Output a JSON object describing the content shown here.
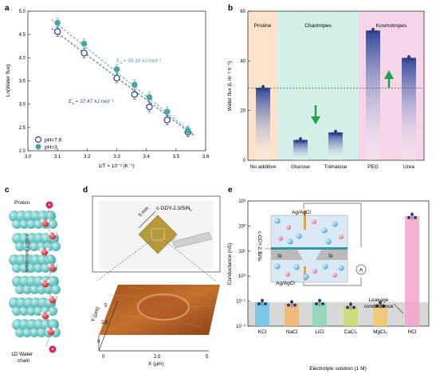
{
  "panel_labels": {
    "a": "a",
    "b": "b",
    "c": "c",
    "d": "d",
    "e": "e"
  },
  "chart_data": [
    {
      "type": "scatter",
      "panel": "a",
      "xlabel": "1/T × 10⁻³ (K⁻¹)",
      "ylabel": "Ln(Water flux)",
      "xlim": [
        3.0,
        3.6
      ],
      "ylim": [
        2.0,
        5.0
      ],
      "xticks": [
        "3.0",
        "3.1",
        "3.2",
        "3.3",
        "3.4",
        "3.5",
        "3.6"
      ],
      "yticks": [
        "2.0",
        "2.5",
        "3.0",
        "3.5",
        "4.0",
        "4.5",
        "5.0"
      ],
      "series": [
        {
          "name": "pH=7.8",
          "marker": "open",
          "color": "#2e4a8c",
          "x": [
            3.1,
            3.19,
            3.3,
            3.36,
            3.41,
            3.47,
            3.54
          ],
          "y": [
            4.56,
            4.1,
            3.56,
            3.21,
            2.94,
            2.66,
            2.4
          ],
          "fit": [
            [
              3.08,
              4.63
            ],
            [
              3.56,
              2.33
            ]
          ]
        },
        {
          "name": "pH=3",
          "marker": "filled",
          "color": "#4ba798",
          "x": [
            3.1,
            3.19,
            3.3,
            3.36,
            3.41,
            3.47,
            3.54
          ],
          "y": [
            4.75,
            4.3,
            3.75,
            3.42,
            3.15,
            2.84,
            2.43
          ],
          "fit": [
            [
              3.08,
              4.82
            ],
            [
              3.56,
              2.35
            ]
          ]
        }
      ],
      "annotations": [
        {
          "text": "E",
          "sub": "a",
          "rest": " = 39.10 kJ mol⁻¹",
          "color": "#4ba798"
        },
        {
          "text": "E",
          "sub": "a",
          "rest": " = 37.47 kJ mol⁻¹",
          "color": "#2e4a8c"
        }
      ],
      "legend_placement": "bottom-left"
    },
    {
      "type": "bar",
      "panel": "b",
      "ylabel": "Water flux (L m⁻² h⁻¹)",
      "ylim": [
        0,
        60
      ],
      "yticks": [
        "0",
        "20",
        "40",
        "60"
      ],
      "categories": [
        "No additive",
        "Glucose",
        "Trehalose",
        "PEG",
        "Urea"
      ],
      "values": [
        29,
        8,
        11,
        52,
        41
      ],
      "bar_colors": [
        "#3a4f9c",
        "#3a4f9c",
        "#3a4f9c",
        "#3a4f9c",
        "#3a4f9c"
      ],
      "regions": [
        {
          "label": "Pristine",
          "color": "#fde3c9"
        },
        {
          "label": "Chaotropes",
          "color": "#d3efe7"
        },
        {
          "label": "Kosmotropes",
          "color": "#f6d5e8"
        }
      ],
      "reference_line": 29
    },
    {
      "type": "bar",
      "panel": "e",
      "scale": "log",
      "xlabel": "Electrolyte solution (1 M)",
      "ylabel": "Conductance (nS)",
      "ylim": [
        0.01,
        1000
      ],
      "yticks": [
        "10⁻²",
        "10⁻¹",
        "10⁰",
        "10¹",
        "10²",
        "10³"
      ],
      "categories": [
        "KCl",
        "NaCl",
        "LiCl",
        "CaCl₂",
        "MgCl₂",
        "HCl"
      ],
      "values": [
        0.09,
        0.08,
        0.09,
        0.065,
        0.075,
        250
      ],
      "bar_colors": [
        "#6ec3e8",
        "#f4b56c",
        "#8cd6b5",
        "#c9de6a",
        "#f2c768",
        "#f5a4c8"
      ],
      "leakage_level": 0.09,
      "leakage_label": "Leakage\nconductance"
    }
  ],
  "panel_c": {
    "proton_label": "Proton",
    "membrane_label": "c-GDY membrane",
    "water_label_line1": "1D Water",
    "water_label_line2": "chain",
    "charge_symbol": "+"
  },
  "panel_d": {
    "sample_label": "c-GDY-2.3/SiN",
    "sample_sub": "x",
    "scale_label": "5 mm",
    "afm_xlabel": "X (μm)",
    "afm_ylabel": "Y (μm)",
    "afm_ticks": [
      "0",
      "2.5",
      "5"
    ]
  },
  "panel_e_inset": {
    "top_electrode": "Ag/AgCl",
    "bottom_electrode": "Ag/AgCl",
    "membrane_label": "c-GDY-2.3",
    "sin_label": "SiN",
    "sin_sub": "x",
    "si_label": "Si",
    "meter_symbol": "A"
  }
}
